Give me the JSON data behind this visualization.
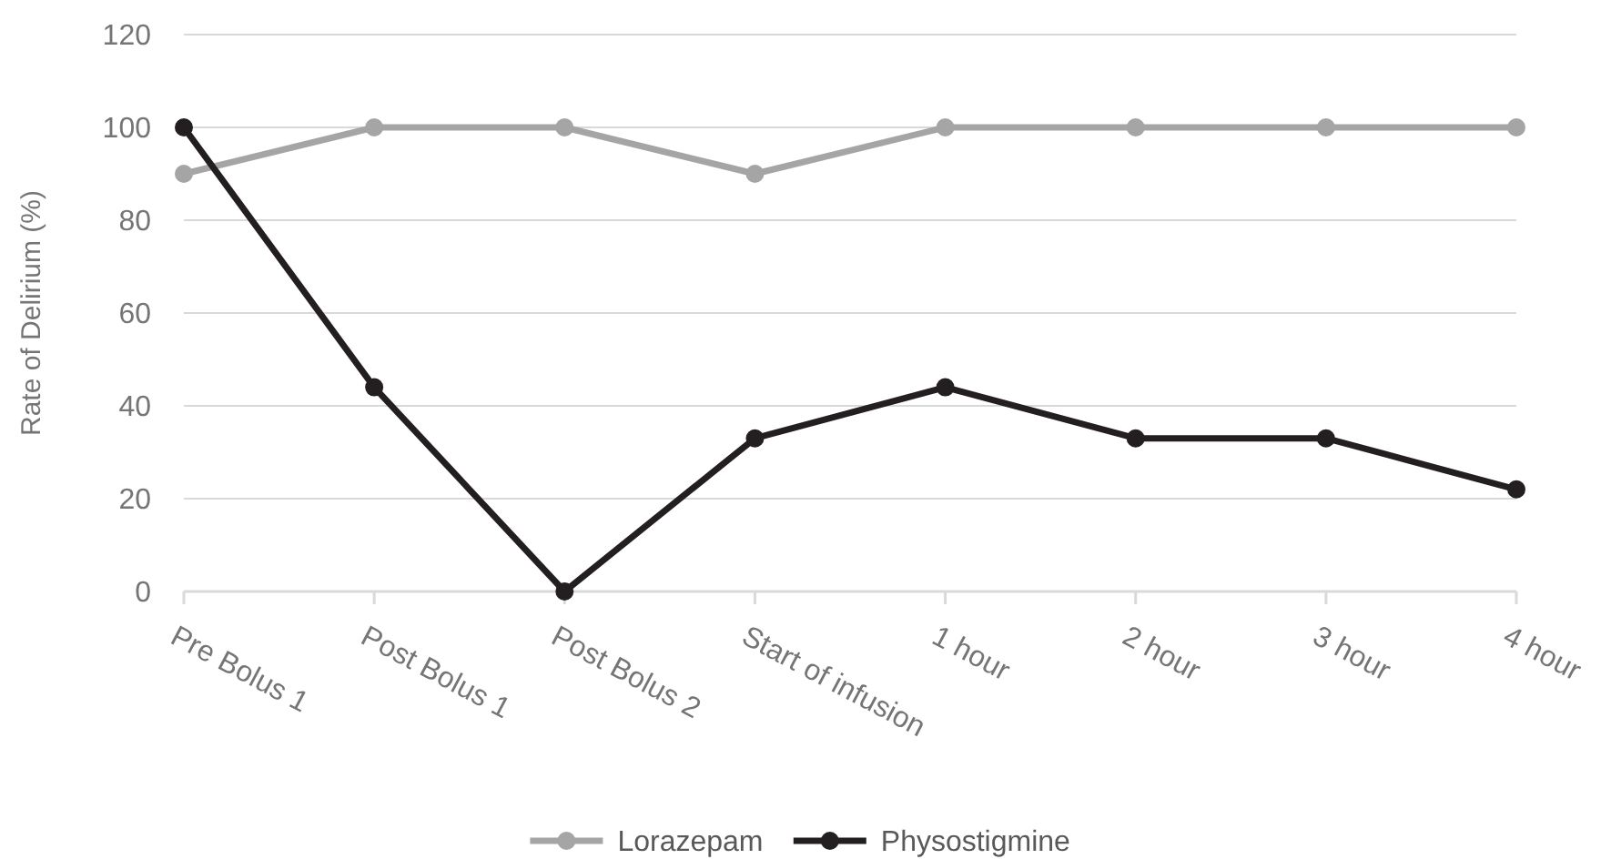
{
  "chart_data": {
    "type": "line",
    "ylabel": "Rate of Delirium (%)",
    "categories": [
      "Pre Bolus 1",
      "Post Bolus 1",
      "Post Bolus 2",
      "Start of infusion",
      "1 hour",
      "2 hour",
      "3 hour",
      "4 hour"
    ],
    "series": [
      {
        "name": "Lorazepam",
        "color": "#a5a5a5",
        "values": [
          90,
          100,
          100,
          90,
          100,
          100,
          100,
          100
        ]
      },
      {
        "name": "Physostigmine",
        "color": "#231f20",
        "values": [
          100,
          44,
          0,
          33,
          44,
          33,
          33,
          22
        ]
      }
    ],
    "ylim": [
      0,
      120
    ],
    "yticks": [
      0,
      20,
      40,
      60,
      80,
      100,
      120
    ],
    "grid": "y",
    "legend": "bottom",
    "marker": "circle",
    "line_style": "solid"
  }
}
